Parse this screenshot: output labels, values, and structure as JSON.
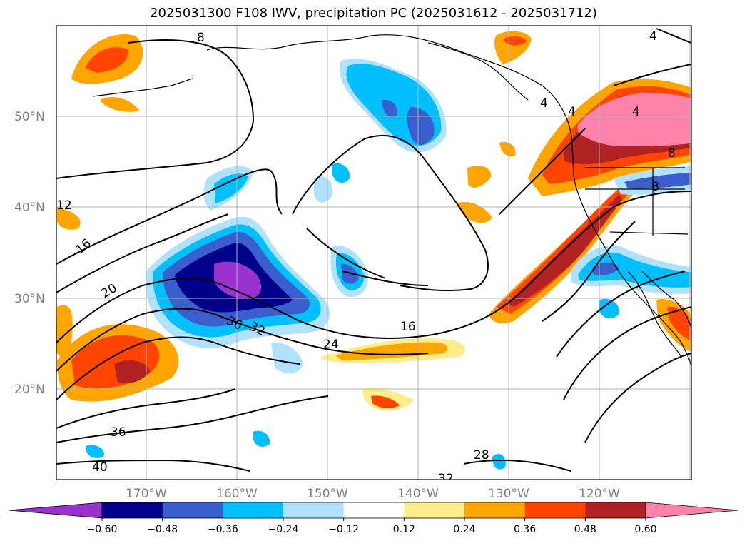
{
  "title": "2025031300 F108 IWV, precipitation PC (2025031612 - 2025031712)",
  "lat_ticks": [
    "50°N",
    "40°N",
    "30°N",
    "20°N"
  ],
  "lon_ticks": [
    "170°W",
    "160°W",
    "150°W",
    "140°W",
    "130°W",
    "120°W"
  ],
  "contour_labels": [
    "8",
    "4",
    "4",
    "4",
    "4",
    "8",
    "8",
    "12",
    "16",
    "20",
    "36",
    "32",
    "24",
    "16",
    "36",
    "40",
    "28",
    "32"
  ],
  "colorbar": {
    "ticks": [
      "−0.60",
      "−0.48",
      "−0.36",
      "−0.24",
      "−0.12",
      "0.12",
      "0.24",
      "0.36",
      "0.48",
      "0.60"
    ],
    "colors": [
      "#9932cc",
      "#00008b",
      "#3a5fcd",
      "#00bfff",
      "#b0e2ff",
      "#ffffff",
      "#ffec8b",
      "#ffa500",
      "#ff4500",
      "#b22222",
      "#ff82ab"
    ]
  }
}
